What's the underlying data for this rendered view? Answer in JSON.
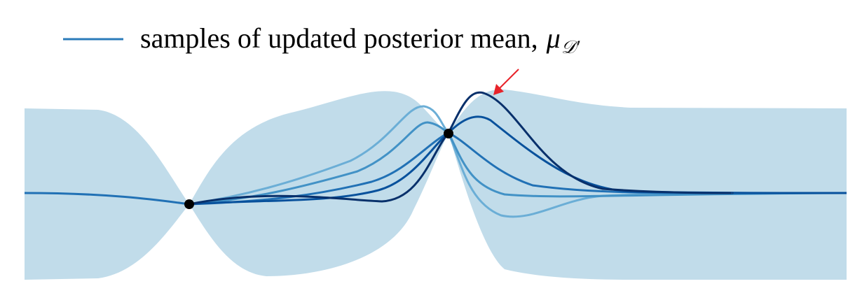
{
  "legend": {
    "label": "samples of updated posterior mean,",
    "symbol": "μ",
    "subscript": "𝒟′"
  }
}
